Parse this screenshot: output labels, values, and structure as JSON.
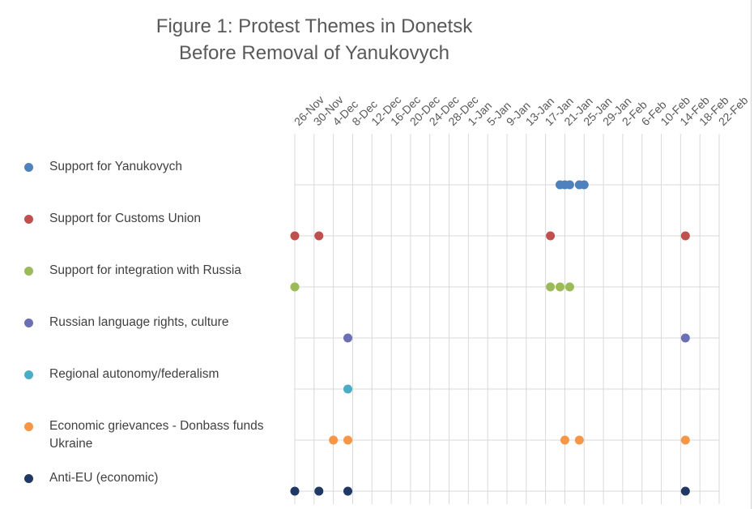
{
  "chart_data": {
    "type": "scatter",
    "title_lines": [
      "Figure 1: Protest Themes in Donetsk",
      "Before Removal of Yanukovych"
    ],
    "x_tick_labels": [
      "26-Nov",
      "30-Nov",
      "4-Dec",
      "8-Dec",
      "12-Dec",
      "16-Dec",
      "20-Dec",
      "24-Dec",
      "28-Dec",
      "1-Jan",
      "5-Jan",
      "9-Jan",
      "13-Jan",
      "17-Jan",
      "21-Jan",
      "25-Jan",
      "29-Jan",
      "2-Feb",
      "6-Feb",
      "10-Feb",
      "14-Feb",
      "18-Feb",
      "22-Feb"
    ],
    "x_axis": "day offset from 26-Nov-2013",
    "xlim": [
      0,
      88
    ],
    "x_tick_step": 4,
    "series": [
      {
        "name": "Support for Yanukovych",
        "color": "#4f81bd",
        "x": [
          55,
          56,
          57,
          59,
          60
        ]
      },
      {
        "name": "Support for Customs Union",
        "color": "#c0504d",
        "x": [
          0,
          5,
          53,
          81
        ]
      },
      {
        "name": "Support for integration with Russia",
        "color": "#9bbb59",
        "x": [
          0,
          53,
          55,
          57
        ]
      },
      {
        "name": "Russian language rights, culture",
        "color": "#6b6fb4",
        "x": [
          11,
          81
        ]
      },
      {
        "name": "Regional autonomy/federalism",
        "color": "#4bacc6",
        "x": [
          11
        ]
      },
      {
        "name": "Economic grievances - Donbass funds Ukraine",
        "color": "#f79646",
        "x": [
          8,
          11,
          56,
          59,
          81
        ]
      },
      {
        "name": "Anti-EU (economic)",
        "color": "#1f3864",
        "x": [
          0,
          5,
          11,
          81
        ]
      }
    ],
    "legend_position": "left",
    "grid": true
  }
}
